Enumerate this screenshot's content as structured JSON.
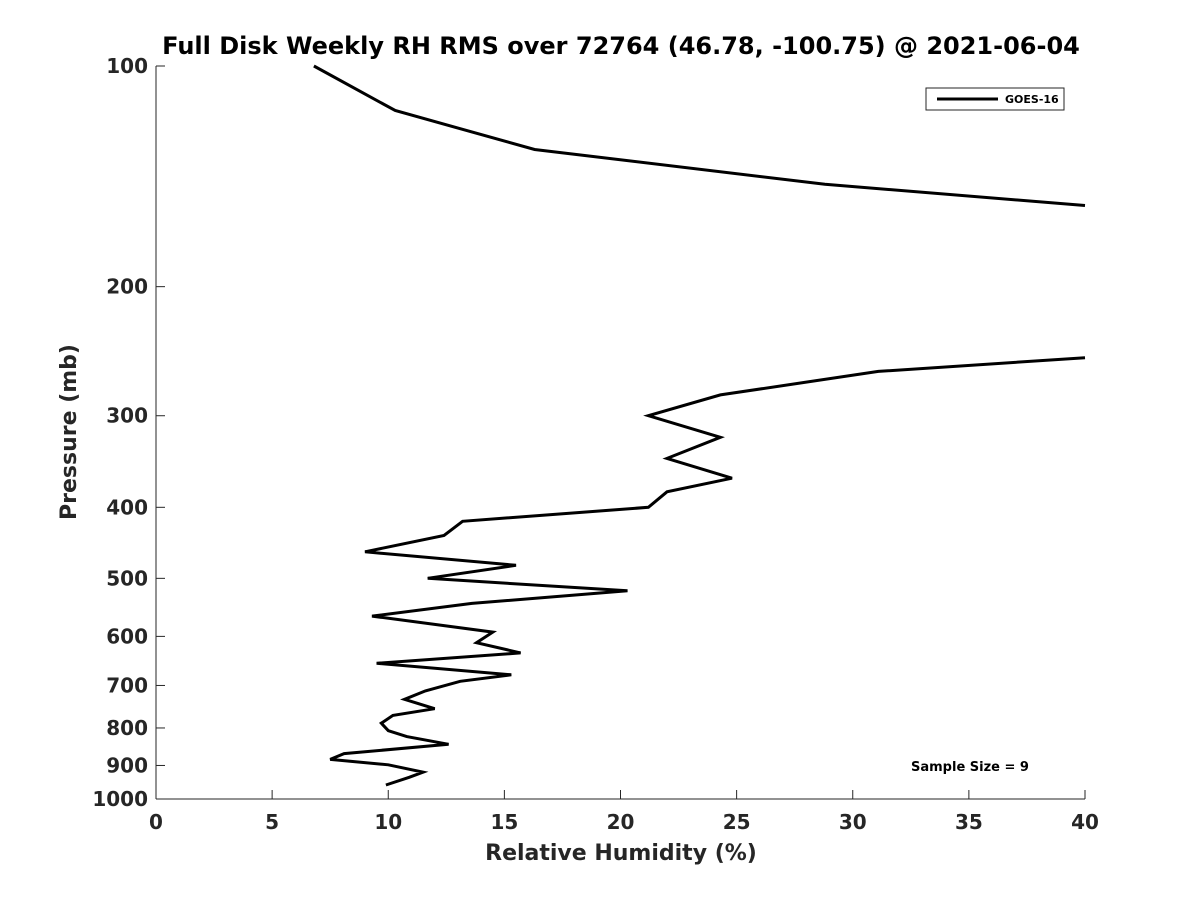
{
  "chart_data": {
    "type": "line",
    "title": "Full Disk Weekly RH RMS over 72764 (46.78, -100.75) @ 2021-06-04",
    "xlabel": "Relative Humidity (%)",
    "ylabel": "Pressure (mb)",
    "xlim": [
      0,
      40
    ],
    "ylim": [
      1000,
      100
    ],
    "y_scale": "log",
    "y_reversed": true,
    "x_ticks": [
      0,
      5,
      10,
      15,
      20,
      25,
      30,
      35,
      40
    ],
    "y_ticks": [
      100,
      200,
      300,
      400,
      500,
      600,
      700,
      800,
      900,
      1000
    ],
    "grid": false,
    "legend": {
      "position": "top-right",
      "entries": [
        "GOES-16"
      ]
    },
    "annotation": "Sample Size = 9",
    "series": [
      {
        "name": "GOES-16",
        "color": "#000000",
        "segments": [
          [
            [
              6.8,
              100
            ],
            [
              10.3,
              115
            ],
            [
              16.3,
              130
            ],
            [
              28.8,
              145
            ],
            [
              40.0,
              155
            ]
          ],
          [
            [
              40.0,
              250
            ],
            [
              31.1,
              261
            ],
            [
              24.3,
              281
            ],
            [
              21.2,
              300
            ],
            [
              24.3,
              321
            ],
            [
              22.0,
              343
            ],
            [
              24.8,
              365
            ],
            [
              22.0,
              381
            ],
            [
              21.2,
              400
            ],
            [
              13.2,
              418
            ],
            [
              12.4,
              437
            ],
            [
              9.0,
              460
            ],
            [
              15.5,
              480
            ],
            [
              11.7,
              500
            ],
            [
              20.3,
              520
            ],
            [
              13.6,
              541
            ],
            [
              9.3,
              563
            ],
            [
              14.5,
              592
            ],
            [
              13.8,
              612
            ],
            [
              15.7,
              632
            ],
            [
              9.5,
              653
            ],
            [
              15.3,
              677
            ],
            [
              13.1,
              691
            ],
            [
              11.6,
              712
            ],
            [
              10.7,
              731
            ],
            [
              12.0,
              753
            ],
            [
              10.2,
              769
            ],
            [
              9.7,
              788
            ],
            [
              10.0,
              807
            ],
            [
              10.8,
              822
            ],
            [
              12.6,
              842
            ],
            [
              8.1,
              867
            ],
            [
              7.5,
              883
            ],
            [
              10.0,
              898
            ],
            [
              11.5,
              919
            ],
            [
              10.9,
              934
            ],
            [
              9.9,
              957
            ]
          ]
        ]
      }
    ]
  }
}
